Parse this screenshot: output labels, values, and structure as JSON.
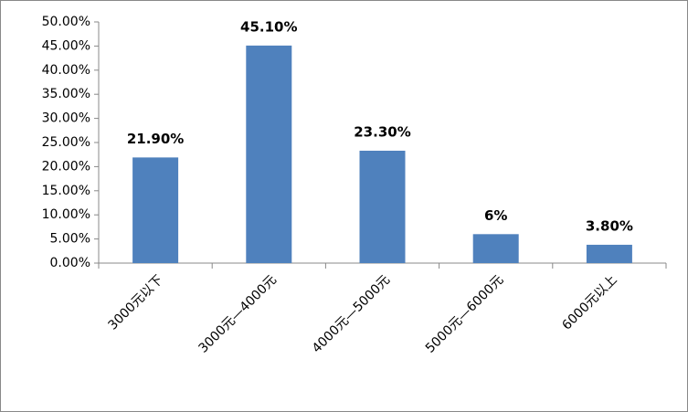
{
  "chart_data": {
    "type": "bar",
    "categories": [
      "3000元以下",
      "3000元—4000元",
      "4000元—5000元",
      "5000元—6000元",
      "6000元以上"
    ],
    "values": [
      21.9,
      45.1,
      23.3,
      6,
      3.8
    ],
    "value_labels": [
      "21.90%",
      "45.10%",
      "23.30%",
      "6%",
      "3.80%"
    ],
    "color": "#4f81bd",
    "ylim": [
      0,
      50
    ],
    "yticks": [
      {
        "value": 0,
        "label": "0.00%"
      },
      {
        "value": 5,
        "label": "5.00%"
      },
      {
        "value": 10,
        "label": "10.00%"
      },
      {
        "value": 15,
        "label": "15.00%"
      },
      {
        "value": 20,
        "label": "20.00%"
      },
      {
        "value": 25,
        "label": "25.00%"
      },
      {
        "value": 30,
        "label": "30.00%"
      },
      {
        "value": 35,
        "label": "35.00%"
      },
      {
        "value": 40,
        "label": "40.00%"
      },
      {
        "value": 45,
        "label": "45.00%"
      },
      {
        "value": 50,
        "label": "50.00%"
      }
    ]
  }
}
